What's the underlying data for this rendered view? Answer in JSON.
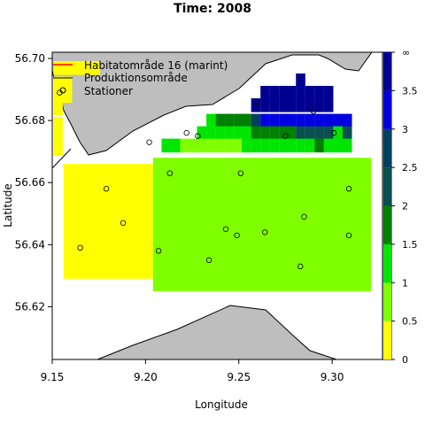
{
  "chart_data": {
    "type": "heatmap",
    "title": "Time: 2008",
    "xlabel": "Longitude",
    "ylabel": "Latitude",
    "xlim": [
      9.15,
      9.327
    ],
    "ylim": [
      56.603,
      56.702
    ],
    "x_ticks": [
      "9.15",
      "9.20",
      "9.25",
      "9.30"
    ],
    "x_tick_values": [
      9.15,
      9.2,
      9.25,
      9.3
    ],
    "y_ticks": [
      "56.70",
      "56.68",
      "56.66",
      "56.64",
      "56.62"
    ],
    "y_tick_values": [
      56.7,
      56.68,
      56.66,
      56.64,
      56.62
    ],
    "legend": {
      "placement": "top-left",
      "entries": [
        {
          "label": "Habitatområde 16 (marint)",
          "symbol": "line",
          "color": "#ff0000"
        },
        {
          "label": "Produktionsområde",
          "symbol": "line",
          "color": "#000000"
        },
        {
          "label": "Stationer",
          "symbol": "circle",
          "color": "#000000"
        }
      ]
    },
    "colorbar": {
      "labels": [
        "0",
        "0.5",
        "1",
        "1.5",
        "2",
        "2.5",
        "3",
        "3.5",
        "∞"
      ],
      "levels": [
        0,
        0.5,
        1,
        1.5,
        2,
        2.5,
        3,
        3.5,
        4
      ],
      "colors": [
        "#ffff00",
        "#80ff00",
        "#00e600",
        "#008000",
        "#0a5050",
        "#004060",
        "#0000e0",
        "#000090"
      ]
    },
    "cell_size": {
      "dlon": 0.0048,
      "dlat": 0.0043
    },
    "cells": [
      {
        "lon": 9.153,
        "lat": 56.697,
        "level": 0
      },
      {
        "lon": 9.158,
        "lat": 56.697,
        "level": 0
      },
      {
        "lon": 9.163,
        "lat": 56.697,
        "level": 0
      },
      {
        "lon": 9.168,
        "lat": 56.697,
        "level": 0
      },
      {
        "lon": 9.173,
        "lat": 56.697,
        "level": 0
      },
      {
        "lon": 9.153,
        "lat": 56.692,
        "level": 0
      },
      {
        "lon": 9.158,
        "lat": 56.692,
        "level": 0
      },
      {
        "lon": 9.153,
        "lat": 56.688,
        "level": 0
      },
      {
        "lon": 9.158,
        "lat": 56.688,
        "level": 0
      },
      {
        "lon": 9.153,
        "lat": 56.684,
        "level": 0
      },
      {
        "lon": 9.153,
        "lat": 56.679,
        "level": 0
      },
      {
        "lon": 9.153,
        "lat": 56.675,
        "level": 0
      },
      {
        "lon": 9.153,
        "lat": 56.671,
        "level": 0
      },
      {
        "lon": 9.283,
        "lat": 56.693,
        "level": 7
      },
      {
        "lon": 9.278,
        "lat": 56.689,
        "level": 7
      },
      {
        "lon": 9.283,
        "lat": 56.689,
        "level": 7
      },
      {
        "lon": 9.288,
        "lat": 56.689,
        "level": 7
      },
      {
        "lon": 9.293,
        "lat": 56.689,
        "level": 7
      },
      {
        "lon": 9.298,
        "lat": 56.689,
        "level": 7
      },
      {
        "lon": 9.264,
        "lat": 56.689,
        "level": 7
      },
      {
        "lon": 9.269,
        "lat": 56.689,
        "level": 7
      },
      {
        "lon": 9.274,
        "lat": 56.689,
        "level": 7
      },
      {
        "lon": 9.259,
        "lat": 56.685,
        "level": 7
      },
      {
        "lon": 9.264,
        "lat": 56.685,
        "level": 7
      },
      {
        "lon": 9.269,
        "lat": 56.685,
        "level": 7
      },
      {
        "lon": 9.274,
        "lat": 56.685,
        "level": 7
      },
      {
        "lon": 9.278,
        "lat": 56.685,
        "level": 7
      },
      {
        "lon": 9.283,
        "lat": 56.685,
        "level": 7
      },
      {
        "lon": 9.288,
        "lat": 56.685,
        "level": 7
      },
      {
        "lon": 9.293,
        "lat": 56.685,
        "level": 7
      },
      {
        "lon": 9.298,
        "lat": 56.685,
        "level": 7
      },
      {
        "lon": 9.235,
        "lat": 56.68,
        "level": 2
      },
      {
        "lon": 9.24,
        "lat": 56.68,
        "level": 3
      },
      {
        "lon": 9.245,
        "lat": 56.68,
        "level": 3
      },
      {
        "lon": 9.25,
        "lat": 56.68,
        "level": 3
      },
      {
        "lon": 9.254,
        "lat": 56.68,
        "level": 3
      },
      {
        "lon": 9.259,
        "lat": 56.68,
        "level": 5
      },
      {
        "lon": 9.264,
        "lat": 56.68,
        "level": 6
      },
      {
        "lon": 9.269,
        "lat": 56.68,
        "level": 6
      },
      {
        "lon": 9.274,
        "lat": 56.68,
        "level": 6
      },
      {
        "lon": 9.278,
        "lat": 56.68,
        "level": 6
      },
      {
        "lon": 9.283,
        "lat": 56.68,
        "level": 6
      },
      {
        "lon": 9.288,
        "lat": 56.68,
        "level": 6
      },
      {
        "lon": 9.293,
        "lat": 56.68,
        "level": 6
      },
      {
        "lon": 9.298,
        "lat": 56.68,
        "level": 6
      },
      {
        "lon": 9.303,
        "lat": 56.68,
        "level": 6
      },
      {
        "lon": 9.308,
        "lat": 56.68,
        "level": 6
      },
      {
        "lon": 9.23,
        "lat": 56.676,
        "level": 2
      },
      {
        "lon": 9.235,
        "lat": 56.676,
        "level": 2
      },
      {
        "lon": 9.24,
        "lat": 56.676,
        "level": 2
      },
      {
        "lon": 9.245,
        "lat": 56.676,
        "level": 2
      },
      {
        "lon": 9.25,
        "lat": 56.676,
        "level": 2
      },
      {
        "lon": 9.254,
        "lat": 56.676,
        "level": 2
      },
      {
        "lon": 9.259,
        "lat": 56.676,
        "level": 3
      },
      {
        "lon": 9.264,
        "lat": 56.676,
        "level": 3
      },
      {
        "lon": 9.269,
        "lat": 56.676,
        "level": 3
      },
      {
        "lon": 9.274,
        "lat": 56.676,
        "level": 3
      },
      {
        "lon": 9.278,
        "lat": 56.676,
        "level": 3
      },
      {
        "lon": 9.283,
        "lat": 56.676,
        "level": 4
      },
      {
        "lon": 9.288,
        "lat": 56.676,
        "level": 4
      },
      {
        "lon": 9.293,
        "lat": 56.676,
        "level": 4
      },
      {
        "lon": 9.298,
        "lat": 56.676,
        "level": 4
      },
      {
        "lon": 9.303,
        "lat": 56.676,
        "level": 2
      },
      {
        "lon": 9.308,
        "lat": 56.676,
        "level": 4
      },
      {
        "lon": 9.211,
        "lat": 56.672,
        "level": 2
      },
      {
        "lon": 9.216,
        "lat": 56.672,
        "level": 2
      },
      {
        "lon": 9.221,
        "lat": 56.672,
        "level": 1
      },
      {
        "lon": 9.226,
        "lat": 56.672,
        "level": 1
      },
      {
        "lon": 9.23,
        "lat": 56.672,
        "level": 1
      },
      {
        "lon": 9.235,
        "lat": 56.672,
        "level": 1
      },
      {
        "lon": 9.24,
        "lat": 56.672,
        "level": 1
      },
      {
        "lon": 9.245,
        "lat": 56.672,
        "level": 1
      },
      {
        "lon": 9.25,
        "lat": 56.672,
        "level": 1
      },
      {
        "lon": 9.254,
        "lat": 56.672,
        "level": 2
      },
      {
        "lon": 9.259,
        "lat": 56.672,
        "level": 2
      },
      {
        "lon": 9.264,
        "lat": 56.672,
        "level": 2
      },
      {
        "lon": 9.269,
        "lat": 56.672,
        "level": 2
      },
      {
        "lon": 9.274,
        "lat": 56.672,
        "level": 2
      },
      {
        "lon": 9.278,
        "lat": 56.672,
        "level": 2
      },
      {
        "lon": 9.283,
        "lat": 56.672,
        "level": 2
      },
      {
        "lon": 9.288,
        "lat": 56.672,
        "level": 2
      },
      {
        "lon": 9.293,
        "lat": 56.672,
        "level": 3
      },
      {
        "lon": 9.298,
        "lat": 56.672,
        "level": 2
      },
      {
        "lon": 9.303,
        "lat": 56.672,
        "level": 2
      },
      {
        "lon": 9.308,
        "lat": 56.672,
        "level": 2
      }
    ],
    "yellow_block": {
      "lon_min": 9.156,
      "lon_max": 9.224,
      "lat_min": 56.629,
      "lat_max": 56.666
    },
    "green_block": {
      "lon_min": 9.204,
      "lon_max": 9.321,
      "lat_min": 56.625,
      "lat_max": 56.668
    },
    "stations": [
      {
        "lon": 9.154,
        "lat": 56.689
      },
      {
        "lon": 9.222,
        "lat": 56.676
      },
      {
        "lon": 9.29,
        "lat": 56.683
      },
      {
        "lon": 9.26,
        "lat": 56.686
      },
      {
        "lon": 9.202,
        "lat": 56.673
      },
      {
        "lon": 9.228,
        "lat": 56.675
      },
      {
        "lon": 9.275,
        "lat": 56.675
      },
      {
        "lon": 9.301,
        "lat": 56.676
      },
      {
        "lon": 9.213,
        "lat": 56.663
      },
      {
        "lon": 9.251,
        "lat": 56.663
      },
      {
        "lon": 9.179,
        "lat": 56.658
      },
      {
        "lon": 9.309,
        "lat": 56.658
      },
      {
        "lon": 9.188,
        "lat": 56.647
      },
      {
        "lon": 9.285,
        "lat": 56.649
      },
      {
        "lon": 9.243,
        "lat": 56.645
      },
      {
        "lon": 9.264,
        "lat": 56.644
      },
      {
        "lon": 9.249,
        "lat": 56.643
      },
      {
        "lon": 9.309,
        "lat": 56.643
      },
      {
        "lon": 9.165,
        "lat": 56.639
      },
      {
        "lon": 9.207,
        "lat": 56.638
      },
      {
        "lon": 9.234,
        "lat": 56.635
      },
      {
        "lon": 9.283,
        "lat": 56.633
      }
    ]
  }
}
